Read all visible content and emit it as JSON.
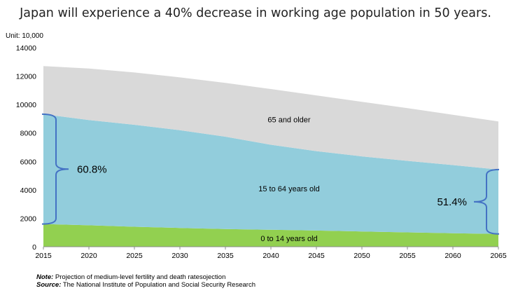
{
  "chart_data": {
    "type": "area",
    "title": "Japan will experience a 40% decrease in working age population in 50 years.",
    "unit_label": "Unit: 10,000",
    "x": [
      2015,
      2020,
      2025,
      2030,
      2035,
      2040,
      2045,
      2050,
      2055,
      2060,
      2065
    ],
    "x_ticks": [
      "2015",
      "2020",
      "2025",
      "2030",
      "2035",
      "2040",
      "2045",
      "2050",
      "2055",
      "2060",
      "2065"
    ],
    "y_ticks": [
      "0",
      "2000",
      "4000",
      "6000",
      "8000",
      "10000",
      "12000",
      "14000"
    ],
    "ylim": [
      0,
      14000
    ],
    "series": [
      {
        "name": "0 to 14 years old",
        "values": [
          1595,
          1507,
          1407,
          1321,
          1246,
          1194,
          1138,
          1077,
          1012,
          951,
          898
        ],
        "color": "#92d050"
      },
      {
        "name": "15 to 64 years old",
        "values": [
          7728,
          7406,
          7170,
          6875,
          6494,
          5978,
          5584,
          5275,
          5028,
          4793,
          4529
        ],
        "color": "#92cddc"
      },
      {
        "name": "65 and older",
        "values": [
          3387,
          3619,
          3677,
          3716,
          3782,
          3921,
          3919,
          3841,
          3704,
          3540,
          3381
        ],
        "color": "#d9d9d9"
      }
    ],
    "annotations": [
      {
        "label": "60.8%",
        "year": 2015
      },
      {
        "label": "51.4%",
        "year": 2065
      }
    ]
  },
  "footnotes": {
    "note_label": "Note:",
    "note_text": " Projection of medium-level fertility and death ratesojection",
    "source_label": "Source:",
    "source_text": " The National Institute of Population and Social Security Research"
  }
}
